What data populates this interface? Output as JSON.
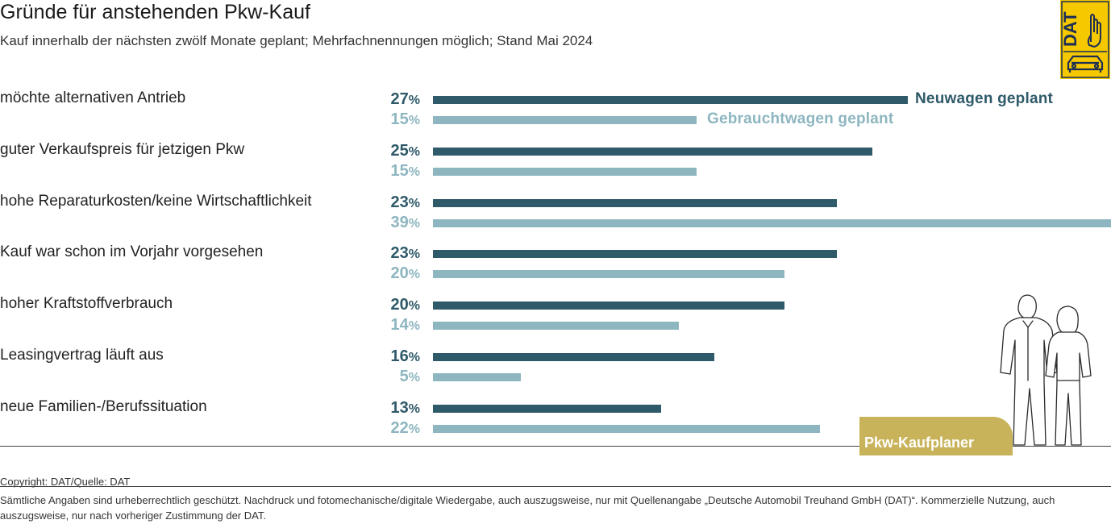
{
  "header": {
    "title": "Gründe für anstehenden Pkw-Kauf",
    "subtitle": "Kauf innerhalb der nächsten zwölf Monate geplant; Mehrfachnennungen möglich; Stand Mai 2024"
  },
  "logo": {
    "text": "DAT"
  },
  "colors": {
    "new": "#2f5a69",
    "used": "#8eb6c0",
    "badge": "#c8b35a",
    "logo": "#f5c800"
  },
  "chart_data": {
    "type": "bar",
    "orientation": "horizontal",
    "title": "Gründe für anstehenden Pkw-Kauf",
    "subtitle": "Kauf innerhalb der nächsten zwölf Monate geplant; Mehrfachnennungen möglich; Stand Mai 2024",
    "unit": "%",
    "xlim": [
      0,
      39
    ],
    "legend": "inline top-right",
    "categories": [
      "möchte alternativen Antrieb",
      "guter Verkaufspreis für jetzigen Pkw",
      "hohe Reparaturkosten/keine Wirtschaftlichkeit",
      "Kauf war schon im Vorjahr vorgesehen",
      "hoher Kraftstoffverbrauch",
      "Leasingvertrag läuft aus",
      "neue Familien-/Berufssituation"
    ],
    "series": [
      {
        "name": "Neuwagen geplant",
        "values": [
          27,
          25,
          23,
          23,
          20,
          16,
          13
        ]
      },
      {
        "name": "Gebrauchtwagen geplant",
        "values": [
          15,
          15,
          39,
          20,
          14,
          5,
          22
        ]
      }
    ]
  },
  "badge": {
    "label": "Pkw-Kaufplaner"
  },
  "footer": {
    "copyright": "Copyright: DAT/Quelle: DAT",
    "legal": "Sämtliche Angaben sind urheberrechtlich geschützt. Nachdruck und fotomechanische/digitale Wiedergabe, auch auszugsweise, nur mit Quellenangabe „Deutsche Automobil Treuhand GmbH (DAT)“. Kommerzielle Nutzung, auch auszugsweise, nur nach vorheriger Zustimmung der DAT."
  }
}
